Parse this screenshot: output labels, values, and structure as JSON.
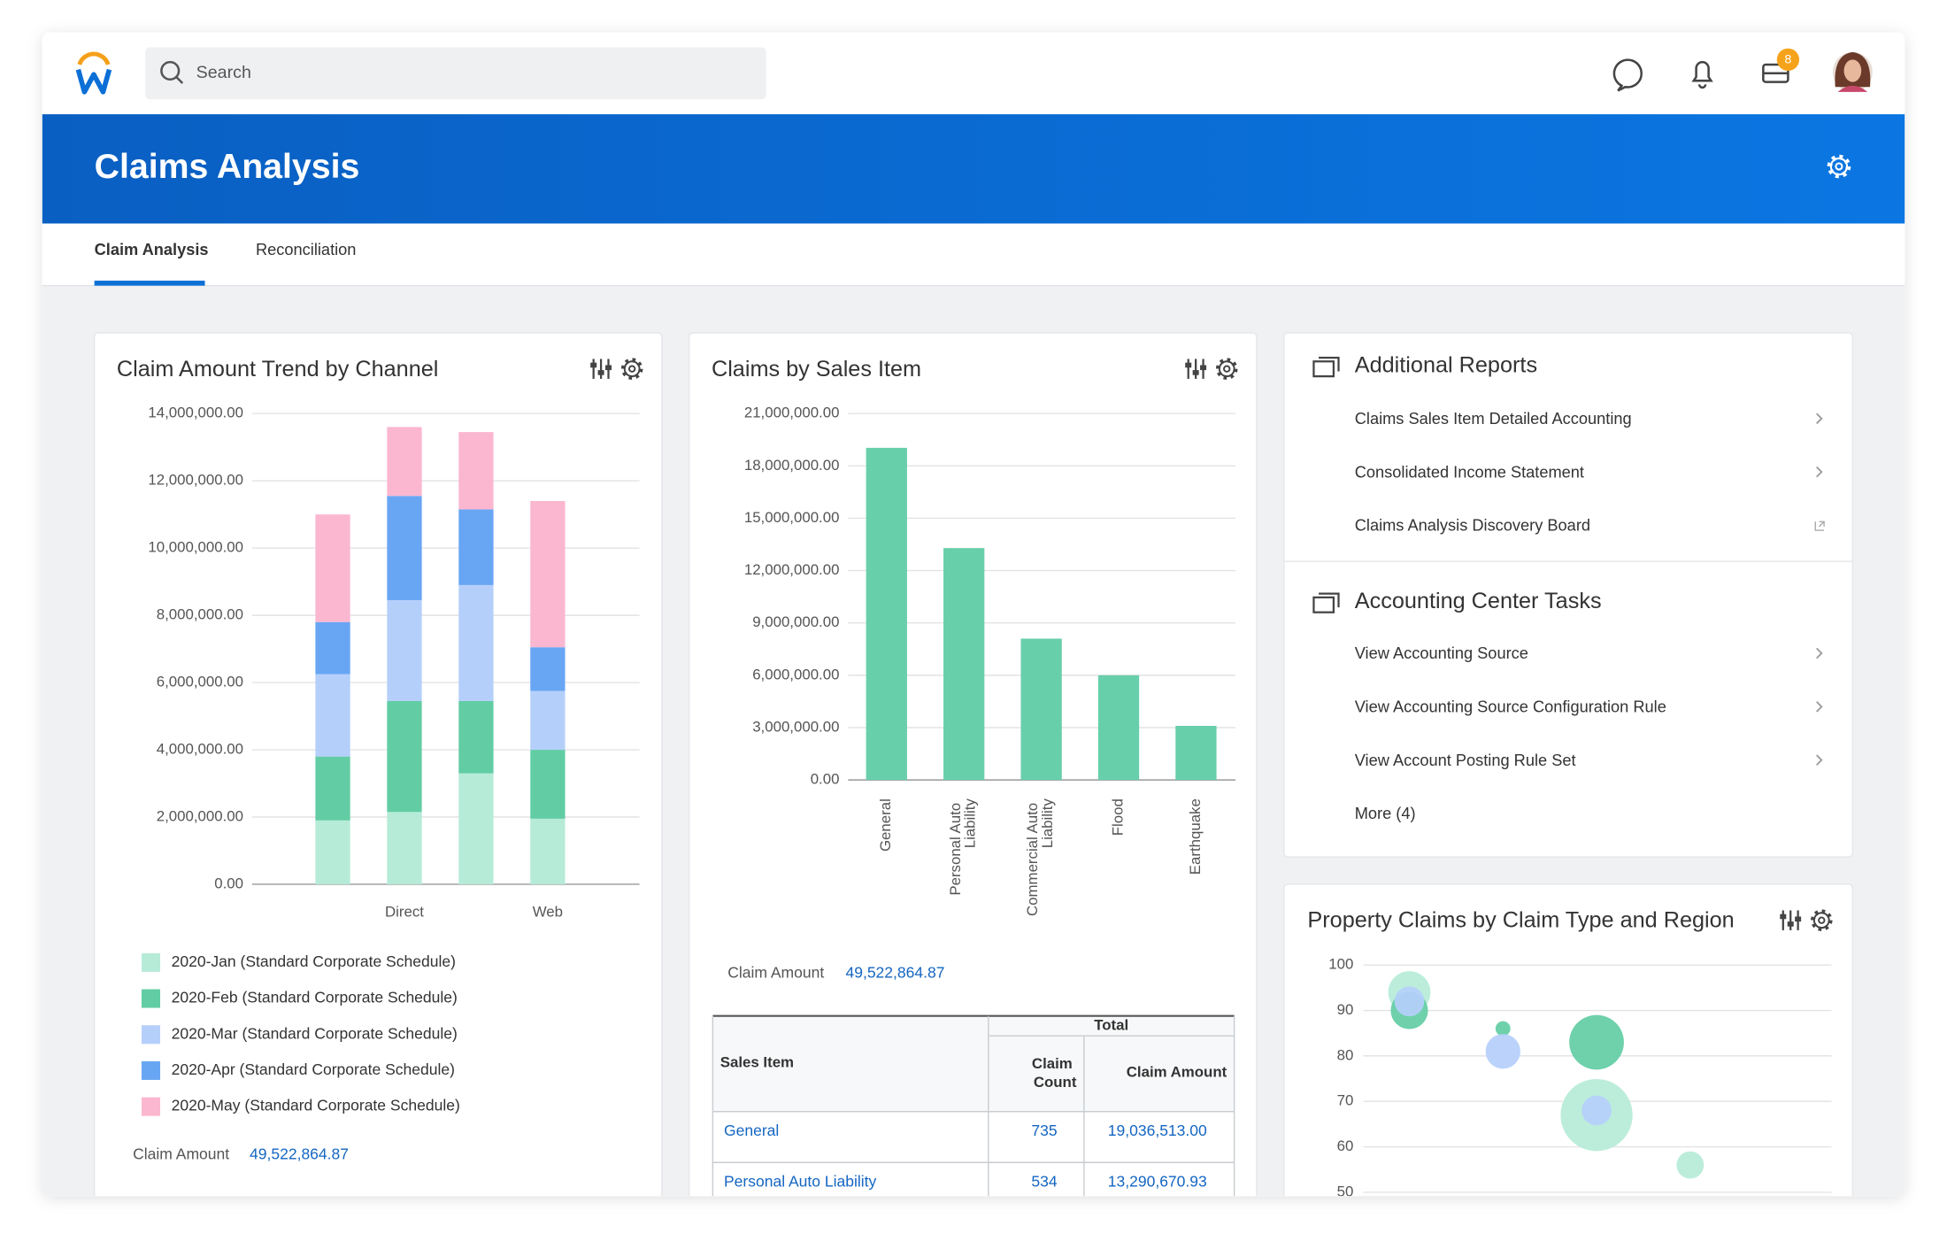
{
  "header": {
    "search_placeholder": "Search",
    "inbox_badge": "8"
  },
  "page": {
    "title": "Claims Analysis",
    "tabs": [
      "Claim Analysis",
      "Reconciliation"
    ]
  },
  "chart_data": [
    {
      "type": "stacked_bar",
      "title": "Claim Amount Trend by Channel",
      "categories": [
        null,
        "Direct",
        null,
        "Web"
      ],
      "series": [
        {
          "name": "2020-Jan (Standard Corporate Schedule)",
          "color": "#b6ebd8",
          "values": [
            1900000,
            2150000,
            3300000,
            1950000
          ]
        },
        {
          "name": "2020-Feb (Standard Corporate Schedule)",
          "color": "#62cda4",
          "values": [
            1900000,
            3300000,
            2150000,
            2050000
          ]
        },
        {
          "name": "2020-Mar (Standard Corporate Schedule)",
          "color": "#b5cffb",
          "values": [
            2450000,
            3000000,
            3450000,
            1750000
          ]
        },
        {
          "name": "2020-Apr (Standard Corporate Schedule)",
          "color": "#68a6f4",
          "values": [
            1550000,
            3100000,
            2250000,
            1300000
          ]
        },
        {
          "name": "2020-May (Standard Corporate Schedule)",
          "color": "#fbb7d0",
          "values": [
            3200000,
            2050000,
            2300000,
            4350000
          ]
        }
      ],
      "ylim": [
        0,
        14000000
      ],
      "yticks": [
        {
          "value": 0,
          "label": "0.00"
        },
        {
          "value": 2000000,
          "label": "2,000,000.00"
        },
        {
          "value": 4000000,
          "label": "4,000,000.00"
        },
        {
          "value": 6000000,
          "label": "6,000,000.00"
        },
        {
          "value": 8000000,
          "label": "8,000,000.00"
        },
        {
          "value": 10000000,
          "label": "10,000,000.00"
        },
        {
          "value": 12000000,
          "label": "12,000,000.00"
        },
        {
          "value": 14000000,
          "label": "14,000,000.00"
        }
      ],
      "grid": true,
      "summary": {
        "label": "Claim Amount",
        "value": "49,522,864.87"
      }
    },
    {
      "type": "bar",
      "title": "Claims by Sales Item",
      "categories": [
        "General",
        "Personal Auto Liability",
        "Commercial Auto Liability",
        "Flood",
        "Earthquake"
      ],
      "values": [
        19036513,
        13290670.93,
        8100000,
        6000000,
        3100000
      ],
      "color": "#68cfab",
      "ylim": [
        0,
        21000000
      ],
      "yticks": [
        {
          "value": 0,
          "label": "0.00"
        },
        {
          "value": 3000000,
          "label": "3,000,000.00"
        },
        {
          "value": 6000000,
          "label": "6,000,000.00"
        },
        {
          "value": 9000000,
          "label": "9,000,000.00"
        },
        {
          "value": 12000000,
          "label": "12,000,000.00"
        },
        {
          "value": 15000000,
          "label": "15,000,000.00"
        },
        {
          "value": 18000000,
          "label": "18,000,000.00"
        },
        {
          "value": 21000000,
          "label": "21,000,000.00"
        }
      ],
      "grid": true,
      "summary": {
        "label": "Claim Amount",
        "value": "49,522,864.87"
      }
    },
    {
      "type": "bubble",
      "title": "Property Claims by Claim Type and Region",
      "categories": [
        null,
        null,
        null,
        null
      ],
      "series": [
        {
          "color": "#b6ebd8",
          "values": [
            94,
            null,
            67,
            56
          ],
          "sizes": [
            17,
            null,
            29,
            11
          ]
        },
        {
          "color": "#62cda4",
          "values": [
            90,
            86,
            83,
            null
          ],
          "sizes": [
            15,
            6,
            22,
            null
          ]
        },
        {
          "color": "#b5cffb",
          "values": [
            92,
            81,
            68,
            null
          ],
          "sizes": [
            12,
            14,
            12,
            null
          ]
        }
      ],
      "ylim": [
        50,
        100
      ],
      "yticks": [
        100,
        90,
        80,
        70,
        60,
        50
      ],
      "grid": true
    }
  ],
  "table": {
    "group_header": "Total",
    "columns": [
      "Sales Item",
      "Claim Count",
      "Claim Amount"
    ],
    "rows": [
      [
        "General",
        "735",
        "19,036,513.00"
      ],
      [
        "Personal Auto Liability",
        "534",
        "13,290,670.93"
      ]
    ]
  },
  "additional_reports": {
    "title": "Additional Reports",
    "items": [
      "Claims Sales Item Detailed Accounting",
      "Consolidated Income Statement",
      "Claims Analysis Discovery Board"
    ]
  },
  "accounting_tasks": {
    "title": "Accounting Center Tasks",
    "items": [
      "View Accounting Source",
      "View Accounting Source Configuration Rule",
      "View Account Posting Rule Set"
    ],
    "more": "More (4)"
  }
}
